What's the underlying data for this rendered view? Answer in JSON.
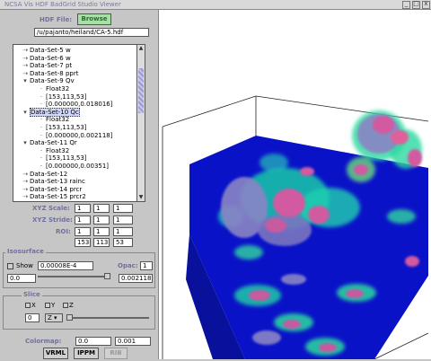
{
  "window": {
    "title": "NCSA Vis HDF BadGrid Studio Viewer"
  },
  "file": {
    "label": "HDF File:",
    "browse_label": "Browse",
    "path": "/u/pajanto/heiland/CA-5.hdf"
  },
  "tree": {
    "items": [
      {
        "toggle": "+",
        "label": "Data-Set-5 w"
      },
      {
        "toggle": "+",
        "label": "Data-Set-6 w"
      },
      {
        "toggle": "+",
        "label": "Data-Set-7 pt"
      },
      {
        "toggle": "+",
        "label": "Data-Set-8 pprt"
      },
      {
        "toggle": "-",
        "label": "Data-Set-9 Qv"
      },
      {
        "toggle": "",
        "label": "Float32"
      },
      {
        "toggle": "",
        "label": "[153,113,53]"
      },
      {
        "toggle": "",
        "label": "[0.000000,0.018016]"
      },
      {
        "toggle": "-",
        "label": "Data-Set-10 Qc",
        "selected": true
      },
      {
        "toggle": "",
        "label": "Float32"
      },
      {
        "toggle": "",
        "label": "[153,113,53]"
      },
      {
        "toggle": "",
        "label": "[0.000000,0.002118]"
      },
      {
        "toggle": "-",
        "label": "Data-Set-11 Qr"
      },
      {
        "toggle": "",
        "label": "Float32"
      },
      {
        "toggle": "",
        "label": "[153,113,53]"
      },
      {
        "toggle": "",
        "label": "[0.000000,0.00351]"
      },
      {
        "toggle": "+",
        "label": "Data-Set-12"
      },
      {
        "toggle": "+",
        "label": "Data-Set-13 rainc"
      },
      {
        "toggle": "+",
        "label": "Data-Set-14 prcr"
      },
      {
        "toggle": "+",
        "label": "Data-Set-15 prcr2"
      }
    ]
  },
  "params": {
    "xyz_scale_label": "XYZ Scale:",
    "xyz_scale": [
      "1",
      "1",
      "1"
    ],
    "xyz_stride_label": "XYZ Stride:",
    "xyz_stride": [
      "1",
      "1",
      "1"
    ],
    "roi_label": "ROI:",
    "roi_min": [
      "1",
      "1",
      "1"
    ],
    "roi_max": [
      "153",
      "113",
      "53"
    ]
  },
  "isosurface": {
    "legend": "Isosurface",
    "show_label": "Show",
    "value": "0.00008E-4",
    "opac_label": "Opac:",
    "opac_value": "1",
    "min": "0.0",
    "max": "0.002118"
  },
  "slice": {
    "legend": "Slice",
    "x_label": "X",
    "y_label": "Y",
    "z_label": "Z",
    "index": "0",
    "axis_select": "Z"
  },
  "colormap": {
    "label": "Colormap:",
    "min": "0.0",
    "max": "0.001"
  },
  "buttons": {
    "vrml": "VRML",
    "ippm": "IPPM",
    "rib": "RIB"
  },
  "colors": {
    "accent_label": "#7070a0",
    "browse_bg": "#a6e0a6",
    "volume": "#0a12c8"
  }
}
